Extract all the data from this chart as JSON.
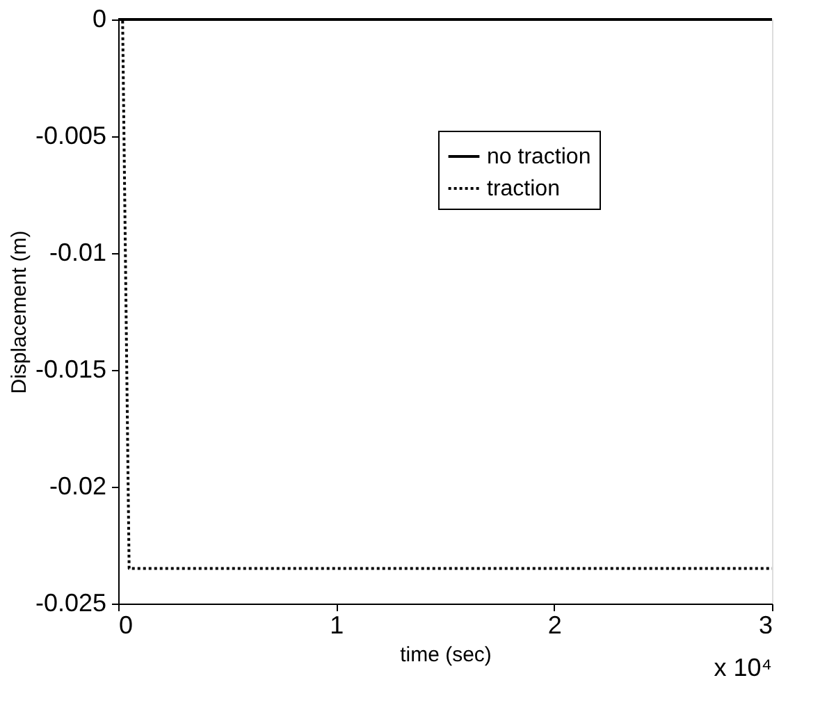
{
  "chart_data": {
    "type": "line",
    "xlabel": "time (sec)",
    "ylabel": "Displacement (m)",
    "xlim": [
      0,
      3
    ],
    "ylim": [
      -0.025,
      0
    ],
    "xticks": [
      0,
      1,
      2,
      3
    ],
    "yticks": [
      -0.025,
      -0.02,
      -0.015,
      -0.01,
      -0.005,
      0
    ],
    "grid": false,
    "legend": "top right",
    "marker": "none",
    "annotations": [
      "x 10⁴"
    ],
    "series": [
      {
        "name": "no traction",
        "color": "#000000",
        "line_style": "solid",
        "x": [
          0,
          3
        ],
        "values": [
          0,
          0
        ]
      },
      {
        "name": "traction",
        "color": "#000000",
        "line_style": "dotted",
        "x": [
          0,
          0.02,
          0.05,
          3
        ],
        "values": [
          0,
          0,
          -0.0235,
          -0.0235
        ]
      }
    ]
  }
}
